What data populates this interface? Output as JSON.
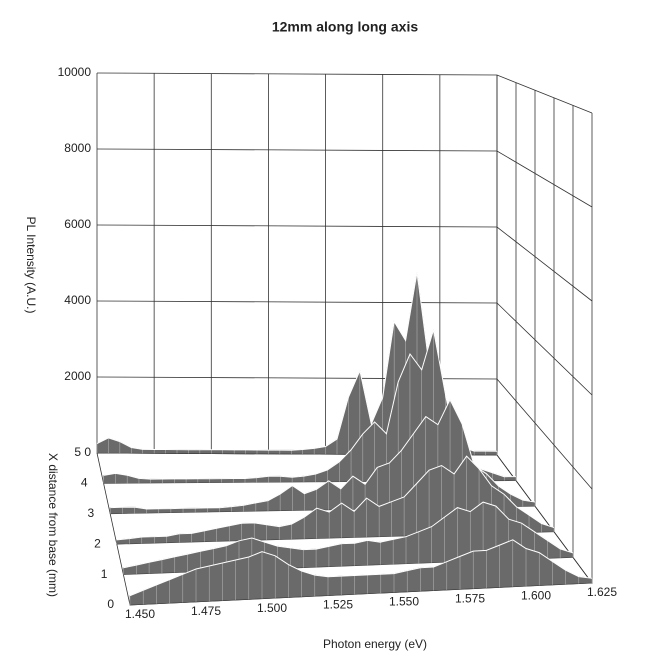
{
  "chart_data": {
    "type": "surface",
    "title": "12mm along long axis",
    "y_label": "PL Intensity (A.U.)",
    "x_label": "Photon energy (eV)",
    "z_label": "X distance from base (mm)",
    "x": [
      1.45,
      1.455,
      1.46,
      1.465,
      1.47,
      1.475,
      1.48,
      1.485,
      1.49,
      1.495,
      1.5,
      1.505,
      1.51,
      1.515,
      1.52,
      1.525,
      1.53,
      1.535,
      1.54,
      1.545,
      1.55,
      1.555,
      1.56,
      1.565,
      1.57,
      1.575,
      1.58,
      1.585,
      1.59,
      1.595,
      1.6,
      1.605,
      1.61,
      1.615,
      1.62,
      1.625
    ],
    "z": [
      0,
      1,
      2,
      3,
      4,
      5
    ],
    "series": [
      {
        "values": [
          200,
          300,
          400,
          500,
          600,
          700,
          750,
          800,
          850,
          900,
          1000,
          900,
          700,
          550,
          450,
          400,
          400,
          400,
          400,
          400,
          400,
          450,
          500,
          500,
          600,
          700,
          800,
          800,
          900,
          1000,
          800,
          700,
          500,
          300,
          150,
          100
        ]
      },
      {
        "values": [
          150,
          200,
          250,
          300,
          350,
          400,
          450,
          500,
          550,
          650,
          700,
          600,
          500,
          450,
          400,
          400,
          450,
          500,
          500,
          550,
          500,
          550,
          600,
          700,
          800,
          1000,
          1200,
          1100,
          1300,
          1200,
          900,
          800,
          600,
          400,
          200,
          100
        ]
      },
      {
        "values": [
          100,
          120,
          150,
          150,
          150,
          200,
          200,
          250,
          300,
          350,
          400,
          400,
          350,
          300,
          350,
          500,
          700,
          600,
          800,
          600,
          900,
          700,
          800,
          900,
          1200,
          1500,
          1600,
          1400,
          1800,
          1500,
          1100,
          900,
          600,
          400,
          200,
          100
        ]
      },
      {
        "values": [
          150,
          150,
          150,
          100,
          100,
          100,
          100,
          100,
          100,
          100,
          120,
          150,
          200,
          250,
          400,
          600,
          400,
          500,
          700,
          500,
          800,
          600,
          1000,
          1100,
          1400,
          1800,
          2200,
          2000,
          2600,
          2000,
          1000,
          800,
          500,
          300,
          150,
          100
        ]
      },
      {
        "values": [
          200,
          250,
          200,
          120,
          100,
          100,
          100,
          100,
          100,
          100,
          100,
          100,
          100,
          120,
          150,
          150,
          120,
          150,
          200,
          300,
          500,
          800,
          1200,
          1500,
          1200,
          2500,
          3200,
          2800,
          3800,
          2200,
          700,
          400,
          300,
          200,
          100,
          100
        ]
      },
      {
        "values": [
          250,
          400,
          300,
          150,
          100,
          100,
          100,
          100,
          100,
          100,
          100,
          100,
          100,
          100,
          100,
          100,
          100,
          100,
          120,
          150,
          200,
          400,
          1500,
          2200,
          800,
          1500,
          3500,
          3000,
          4800,
          2500,
          600,
          300,
          200,
          100,
          100,
          100
        ]
      }
    ],
    "color": "#6a6a6a",
    "xlim": [
      1.45,
      1.625
    ],
    "xticks": [
      {
        "value": 1.45,
        "label": "1.450"
      },
      {
        "value": 1.475,
        "label": "1.475"
      },
      {
        "value": 1.5,
        "label": "1.500"
      },
      {
        "value": 1.525,
        "label": "1.525"
      },
      {
        "value": 1.55,
        "label": "1.550"
      },
      {
        "value": 1.575,
        "label": "1.575"
      },
      {
        "value": 1.6,
        "label": "1.600"
      },
      {
        "value": 1.625,
        "label": "1.625"
      }
    ],
    "ylim": [
      0,
      10000
    ],
    "yticks": [
      0,
      2000,
      4000,
      6000,
      8000,
      10000
    ],
    "zlim": [
      0,
      5
    ],
    "zticks": [
      0,
      1,
      2,
      3,
      4,
      5
    ],
    "grid": true
  }
}
